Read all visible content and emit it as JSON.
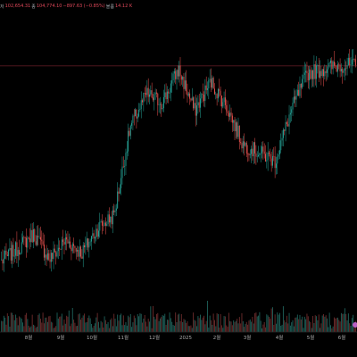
{
  "legend": {
    "open_label": "",
    "open_value": "",
    "high_label": "저",
    "high_value": "102,654.31",
    "low_label": "종",
    "low_value": "104,774.10",
    "change_value": "−897.63 (−0.85%)",
    "volume_label": "볼륨",
    "volume_value": "14.12 K",
    "partial_title": "비트코인 / 테더 USDT 정보 변동률"
  },
  "colors": {
    "background": "#000000",
    "up": "#26a69a",
    "down": "#ef5350",
    "price_line": "#5a1a22",
    "volume_up": "#1f5f58",
    "volume_down": "#6a2b2b",
    "marker": "#b85fc4"
  },
  "x_axis": {
    "labels": [
      "8월",
      "9월",
      "10월",
      "11월",
      "12월",
      "2025",
      "2월",
      "3월",
      "4월",
      "5월",
      "6월"
    ]
  },
  "chart_data": {
    "type": "candlestick",
    "title": "",
    "xlabel": "",
    "ylabel": "",
    "x": [
      "8월",
      "9월",
      "10월",
      "11월",
      "12월",
      "2025",
      "2월",
      "3월",
      "4월",
      "5월",
      "6월"
    ],
    "series": [
      {
        "name": "",
        "anchor_closes": [
          58000,
          61000,
          64500,
          58500,
          63000,
          60000,
          66000,
          69000,
          90000,
          98000,
          96000,
          104000,
          94000,
          101000,
          95000,
          86000,
          84000,
          82000,
          94000,
          103000,
          104000,
          105000,
          104700
        ],
        "anchor_labels": [
          "8월",
          "8월",
          "8월",
          "9월",
          "9월",
          "10월",
          "10월",
          "11월",
          "11월",
          "12월",
          "12월",
          "1월",
          "1월",
          "2025",
          "2월",
          "2월",
          "3월",
          "4월",
          "4월",
          "5월",
          "5월",
          "6월",
          "6월"
        ]
      }
    ],
    "price_line": 104774,
    "grid": false
  }
}
